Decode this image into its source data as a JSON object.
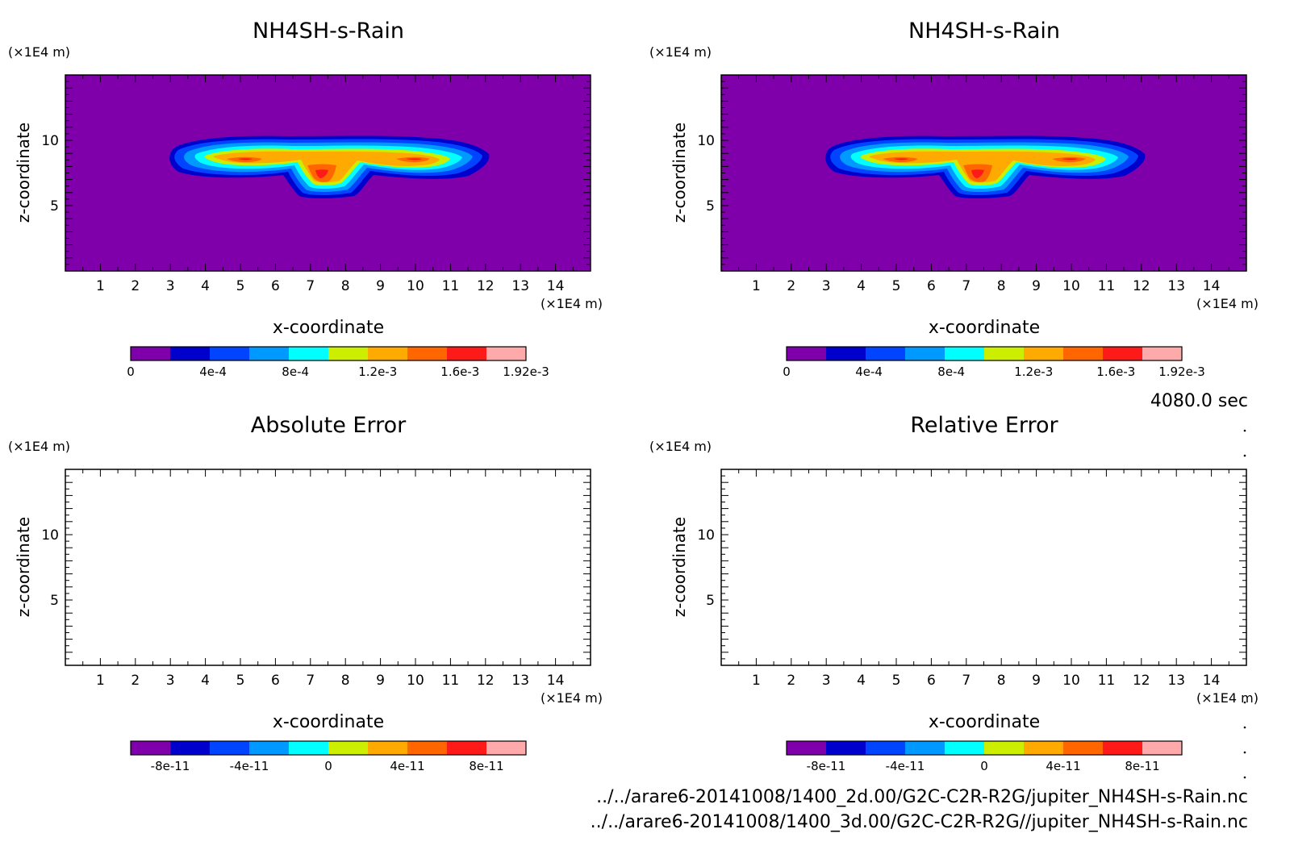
{
  "time_label": "4080.0 sec",
  "files": [
    "../../arare6-20141008/1400_2d.00/G2C-C2R-R2G/jupiter_NH4SH-s-Rain.nc",
    "../../arare6-20141008/1400_3d.00/G2C-C2R-R2G//jupiter_NH4SH-s-Rain.nc"
  ],
  "colors": {
    "scale": [
      "#7f00aa",
      "#0000cd",
      "#0044ff",
      "#0099ff",
      "#00ffff",
      "#ccee00",
      "#ffaa00",
      "#ff6600",
      "#ff1a1a",
      "#ffaaaa"
    ],
    "background_field": "#7f00aa"
  },
  "chart_data": [
    {
      "type": "heatmap",
      "id": "top-left",
      "title": "NH4SH-s-Rain",
      "unit_z": "(×1E4 m)",
      "unit_x": "(×1E4 m)",
      "xlabel": "x-coordinate",
      "ylabel": "z-coordinate",
      "xlim": [
        0.0,
        15.0
      ],
      "ylim": [
        0.0,
        15.0
      ],
      "xticks": [
        1,
        2,
        3,
        4,
        5,
        6,
        7,
        8,
        9,
        10,
        11,
        12,
        13,
        14
      ],
      "yticks": [
        5,
        10
      ],
      "filled": true,
      "colorbar": {
        "range": [
          0,
          0.00192
        ],
        "tick_values": [
          0,
          0.0004,
          0.0008,
          0.0012,
          0.0016,
          0.00192
        ],
        "tick_labels": [
          "0",
          "4e-4",
          "8e-4",
          "1.2e-3",
          "1.6e-3",
          "1.92e-3"
        ]
      }
    },
    {
      "type": "heatmap",
      "id": "top-right",
      "title": "NH4SH-s-Rain",
      "unit_z": "(×1E4 m)",
      "unit_x": "(×1E4 m)",
      "xlabel": "x-coordinate",
      "ylabel": "z-coordinate",
      "xlim": [
        0.0,
        15.0
      ],
      "ylim": [
        0.0,
        15.0
      ],
      "xticks": [
        1,
        2,
        3,
        4,
        5,
        6,
        7,
        8,
        9,
        10,
        11,
        12,
        13,
        14
      ],
      "yticks": [
        5,
        10
      ],
      "filled": true,
      "colorbar": {
        "range": [
          0,
          0.00192
        ],
        "tick_values": [
          0,
          0.0004,
          0.0008,
          0.0012,
          0.0016,
          0.00192
        ],
        "tick_labels": [
          "0",
          "4e-4",
          "8e-4",
          "1.2e-3",
          "1.6e-3",
          "1.92e-3"
        ]
      }
    },
    {
      "type": "heatmap",
      "id": "bottom-left",
      "title": "Absolute Error",
      "unit_z": "(×1E4 m)",
      "unit_x": "(×1E4 m)",
      "xlabel": "x-coordinate",
      "ylabel": "z-coordinate",
      "xlim": [
        0.0,
        15.0
      ],
      "ylim": [
        0.0,
        15.0
      ],
      "xticks": [
        1,
        2,
        3,
        4,
        5,
        6,
        7,
        8,
        9,
        10,
        11,
        12,
        13,
        14
      ],
      "yticks": [
        5,
        10
      ],
      "filled": false,
      "colorbar": {
        "range": [
          -1e-10,
          1e-10
        ],
        "tick_values": [
          -8e-11,
          -4e-11,
          0,
          4e-11,
          8e-11
        ],
        "tick_labels": [
          "-8e-11",
          "-4e-11",
          "0",
          "4e-11",
          "8e-11"
        ]
      }
    },
    {
      "type": "heatmap",
      "id": "bottom-right",
      "title": "Relative Error",
      "unit_z": "(×1E4 m)",
      "unit_x": "(×1E4 m)",
      "xlabel": "x-coordinate",
      "ylabel": "z-coordinate",
      "xlim": [
        0.0,
        15.0
      ],
      "ylim": [
        0.0,
        15.0
      ],
      "xticks": [
        1,
        2,
        3,
        4,
        5,
        6,
        7,
        8,
        9,
        10,
        11,
        12,
        13,
        14
      ],
      "yticks": [
        5,
        10
      ],
      "filled": false,
      "colorbar": {
        "range": [
          -1e-10,
          1e-10
        ],
        "tick_values": [
          -8e-11,
          -4e-11,
          0,
          4e-11,
          8e-11
        ],
        "tick_labels": [
          "-8e-11",
          "-4e-11",
          "0",
          "4e-11",
          "8e-11"
        ]
      }
    }
  ]
}
